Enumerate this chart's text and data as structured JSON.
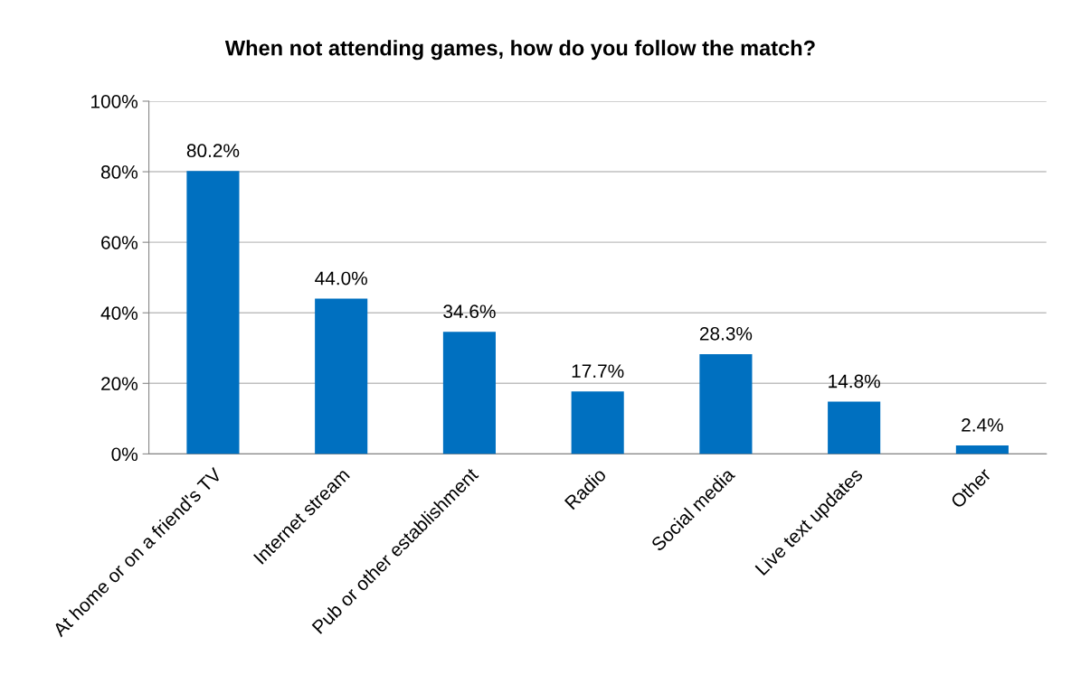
{
  "chart_data": {
    "type": "bar",
    "title": "When not attending games, how do you follow the match?",
    "categories": [
      "At home or on a friend's TV",
      "Internet stream",
      "Pub or other establishment",
      "Radio",
      "Social media",
      "Live text updates",
      "Other"
    ],
    "values": [
      80.2,
      44.0,
      34.6,
      17.7,
      28.3,
      14.8,
      2.4
    ],
    "value_labels": [
      "80.2%",
      "44.0%",
      "34.6%",
      "17.7%",
      "28.3%",
      "14.8%",
      "2.4%"
    ],
    "color": "#0070c0",
    "ylim": [
      0,
      100
    ],
    "yticks": [
      {
        "value": 0,
        "label": "0%"
      },
      {
        "value": 20,
        "label": "20%"
      },
      {
        "value": 40,
        "label": "40%"
      },
      {
        "value": 60,
        "label": "60%"
      },
      {
        "value": 80,
        "label": "80%"
      },
      {
        "value": 100,
        "label": "100%"
      }
    ],
    "grid": "y",
    "legend": false
  }
}
